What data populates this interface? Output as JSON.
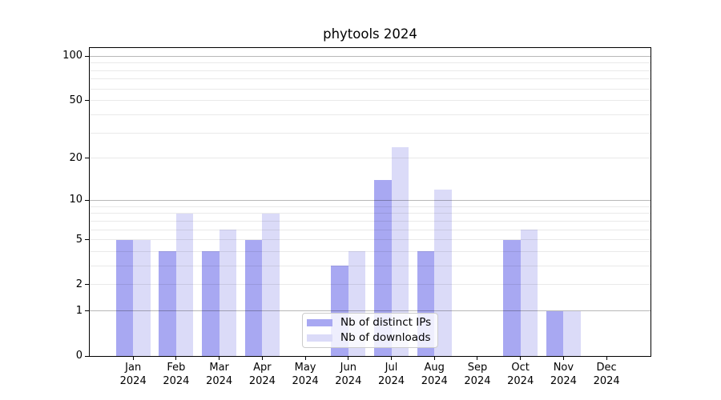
{
  "chart_data": {
    "type": "bar",
    "title": "phytools 2024",
    "categories": [
      "Jan",
      "Feb",
      "Mar",
      "Apr",
      "May",
      "Jun",
      "Jul",
      "Aug",
      "Sep",
      "Oct",
      "Nov",
      "Dec"
    ],
    "x_tick_second_line": "2024",
    "series": [
      {
        "key": "distinct-ips",
        "name": "Nb of distinct IPs",
        "color": "#a8a8f2",
        "values": [
          5,
          4,
          4,
          5,
          0,
          3,
          14,
          4,
          0,
          5,
          1,
          0
        ]
      },
      {
        "key": "downloads",
        "name": "Nb of downloads",
        "color": "#dbdbf8",
        "values": [
          5,
          8,
          6,
          8,
          0,
          4,
          24,
          12,
          0,
          6,
          1,
          0
        ]
      }
    ],
    "xlabel": "",
    "ylabel": "",
    "yscale": "log10(1+y)",
    "ylim": [
      0,
      114
    ],
    "y_ticks": [
      100,
      50,
      20,
      10,
      5,
      2,
      1,
      0
    ],
    "y_major_gridlines": [
      1,
      10,
      100
    ],
    "y_minor_gridlines": [
      2,
      3,
      4,
      5,
      6,
      7,
      8,
      9,
      20,
      30,
      40,
      50,
      60,
      70,
      80,
      90
    ],
    "grid": true,
    "legend_position": "lower center"
  },
  "colors": {
    "major_gridline": "#bdbdbd",
    "minor_gridline": "#e9e9e9",
    "axis": "#000000",
    "background": "#ffffff",
    "legend_border": "#cccccc"
  }
}
